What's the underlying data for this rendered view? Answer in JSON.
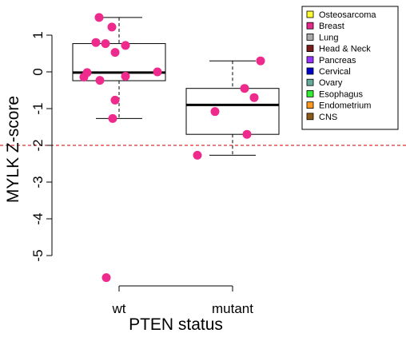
{
  "chart_data": {
    "type": "boxplot",
    "xlabel": "PTEN status",
    "ylabel": "MYLK Z-score",
    "ylim": [
      -5.6,
      1.5
    ],
    "yticks": [
      1,
      0,
      -1,
      -2,
      -3,
      -4,
      -5
    ],
    "threshold": {
      "value": -2,
      "color": "#cc0000",
      "style": "dashed"
    },
    "groups": [
      {
        "name": "wt",
        "box": {
          "lower_whisker": -1.27,
          "q1": -0.24,
          "median": -0.02,
          "q3": 0.77,
          "upper_whisker": 1.48
        },
        "outliers": [
          -5.6
        ],
        "points": [
          1.48,
          1.22,
          0.8,
          0.77,
          0.72,
          0.53,
          0.0,
          -0.02,
          -0.12,
          -0.14,
          -0.23,
          -0.77,
          -1.27
        ]
      },
      {
        "name": "mutant",
        "box": {
          "lower_whisker": -2.27,
          "q1": -1.7,
          "median": -0.9,
          "q3": -0.45,
          "upper_whisker": 0.3
        },
        "outliers": [],
        "points": [
          0.3,
          -0.45,
          -0.7,
          -1.08,
          -1.7,
          -2.27
        ]
      }
    ],
    "point_color": "#ee2a8c",
    "legend": [
      {
        "label": "Osteosarcoma",
        "color": "#ffff33"
      },
      {
        "label": "Breast",
        "color": "#e7298a"
      },
      {
        "label": "Lung",
        "color": "#aaaaaa"
      },
      {
        "label": "Head & Neck",
        "color": "#7b1d1d"
      },
      {
        "label": "Pancreas",
        "color": "#9933ff"
      },
      {
        "label": "Cervical",
        "color": "#0000cc"
      },
      {
        "label": "Ovary",
        "color": "#66aa99"
      },
      {
        "label": "Esophagus",
        "color": "#33ee33"
      },
      {
        "label": "Endometrium",
        "color": "#ff9922"
      },
      {
        "label": "CNS",
        "color": "#8b5a1a"
      }
    ]
  }
}
